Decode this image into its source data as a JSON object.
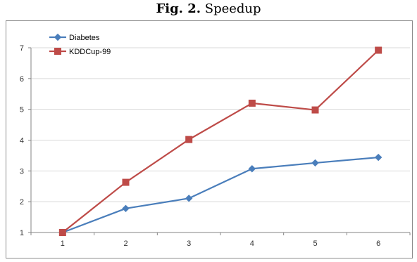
{
  "figure": {
    "label": "Fig. 2.",
    "title": "Speedup"
  },
  "chart_data": {
    "type": "line",
    "title": "Speedup",
    "xlabel": "",
    "ylabel": "",
    "x": [
      1,
      2,
      3,
      4,
      5,
      6
    ],
    "ylim": [
      1,
      7
    ],
    "yticks": [
      1,
      2,
      3,
      4,
      5,
      6,
      7
    ],
    "grid": "horizontal",
    "legend_position": "top-left",
    "series": [
      {
        "name": "Diabetes",
        "color": "#4a7ebb",
        "marker": "diamond",
        "values": [
          1.0,
          1.78,
          2.11,
          3.07,
          3.26,
          3.44
        ]
      },
      {
        "name": "KDDCup-99",
        "color": "#be4b48",
        "marker": "square",
        "values": [
          1.0,
          2.63,
          4.02,
          5.2,
          4.98,
          6.92
        ]
      }
    ]
  }
}
